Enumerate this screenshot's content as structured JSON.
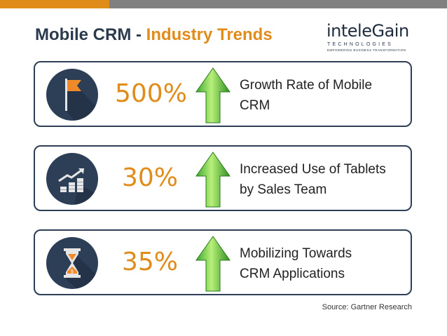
{
  "header": {
    "title_main": "Mobile CRM",
    "title_sep": " - ",
    "title_accent": "Industry Trends",
    "colors": {
      "orange": "#e08c1b",
      "gray": "#808080",
      "navy": "#2d3f57"
    }
  },
  "logo": {
    "word": "inteleGain",
    "line1": "TECHNOLOGIES",
    "line2": "EMPOWERING BUSINESS TRANSFORMATION"
  },
  "trends": [
    {
      "icon": "flag-icon",
      "value": "500%",
      "line1": "Growth Rate of Mobile",
      "line2": "CRM"
    },
    {
      "icon": "coins-growth-icon",
      "value": "30%",
      "line1": "Increased Use of Tablets",
      "line2": "by Sales Team"
    },
    {
      "icon": "hourglass-icon",
      "value": "35%",
      "line1": "Mobilizing Towards",
      "line2": "CRM Applications"
    }
  ],
  "source": "Source: Gartner Research"
}
